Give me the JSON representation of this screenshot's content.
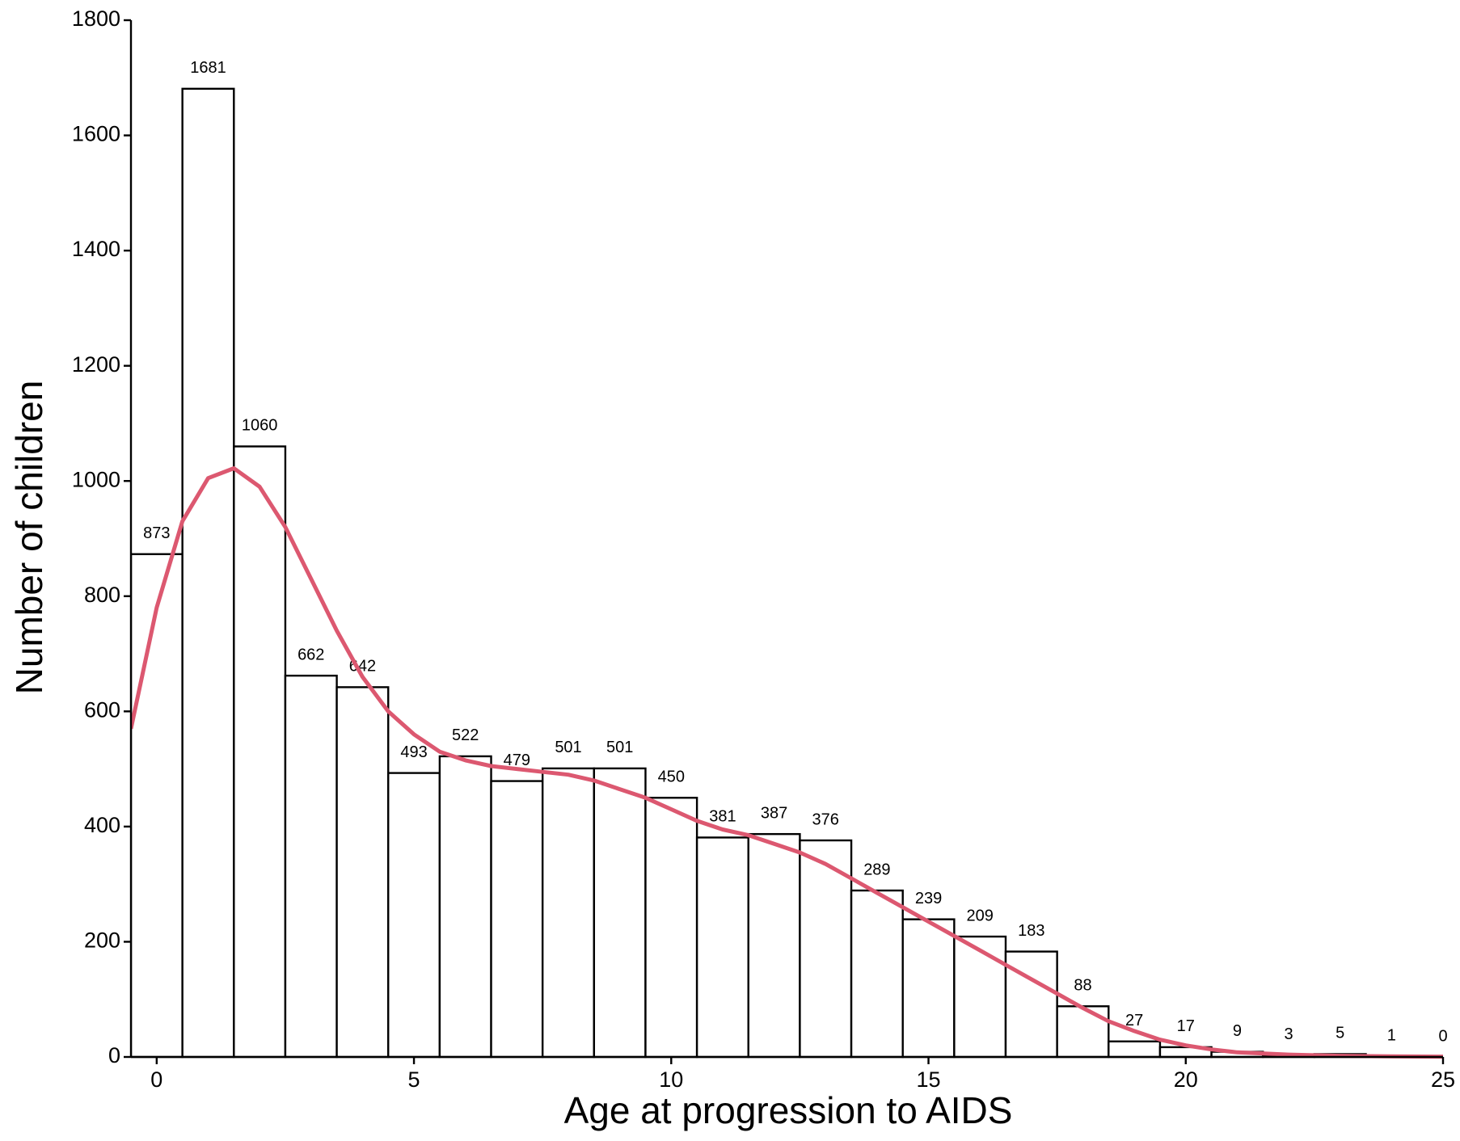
{
  "chart_data": {
    "type": "histogram",
    "xlabel": "Age at progression to AIDS",
    "ylabel": "Number of children",
    "bins": [
      -0.5,
      0.5,
      1.5,
      2.5,
      3.5,
      4.5,
      5.5,
      6.5,
      7.5,
      8.5,
      9.5,
      10.5,
      11.5,
      12.5,
      13.5,
      14.5,
      15.5,
      16.5,
      17.5,
      18.5,
      19.5,
      20.5,
      21.5,
      22.5,
      23.5,
      24.5,
      25.5
    ],
    "values": [
      873,
      1681,
      1060,
      662,
      642,
      493,
      522,
      479,
      501,
      501,
      450,
      381,
      387,
      376,
      289,
      239,
      209,
      183,
      88,
      27,
      17,
      9,
      3,
      5,
      1,
      0
    ],
    "bar_color": "#ffffff",
    "edge_color": "#000000",
    "curve": {
      "color": "#dc5870",
      "x": [
        -0.5,
        0,
        0.5,
        1,
        1.5,
        2,
        2.5,
        3,
        3.5,
        4,
        4.5,
        5,
        5.5,
        6,
        6.5,
        7,
        7.5,
        8,
        8.5,
        9,
        9.5,
        10,
        10.5,
        11,
        11.5,
        12,
        12.5,
        13,
        13.5,
        14,
        14.5,
        15,
        15.5,
        16,
        16.5,
        17,
        17.5,
        18,
        18.5,
        19,
        19.5,
        20,
        20.5,
        21,
        22,
        23,
        24,
        25
      ],
      "values": [
        570,
        780,
        930,
        1005,
        1022,
        990,
        920,
        830,
        740,
        660,
        600,
        560,
        530,
        515,
        505,
        500,
        495,
        490,
        480,
        465,
        450,
        430,
        410,
        395,
        385,
        370,
        355,
        335,
        310,
        285,
        260,
        235,
        210,
        185,
        160,
        135,
        110,
        85,
        62,
        45,
        30,
        20,
        13,
        8,
        4,
        2,
        1,
        0.5
      ]
    },
    "xlim": [
      -0.5,
      25
    ],
    "ylim": [
      0,
      1800
    ],
    "xticks": [
      0,
      5,
      10,
      15,
      20,
      25
    ],
    "yticks": [
      0,
      200,
      400,
      600,
      800,
      1000,
      1200,
      1400,
      1600,
      1800
    ]
  }
}
